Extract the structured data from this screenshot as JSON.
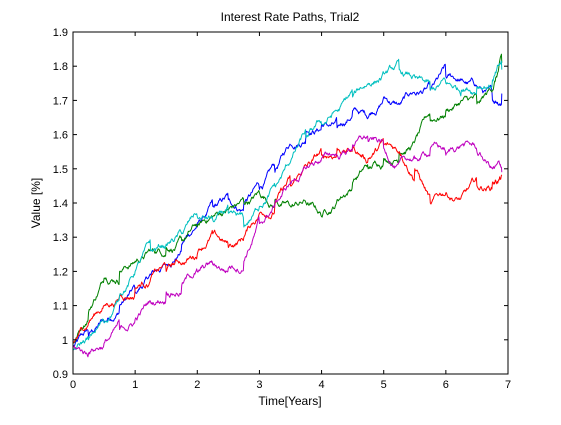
{
  "figure": {
    "background": "#ffffff"
  },
  "chart_data": {
    "type": "line",
    "title": "Interest Rate Paths, Trial2",
    "xlabel": "Time[Years]",
    "ylabel": "Value [%]",
    "xlim": [
      0,
      7
    ],
    "ylim": [
      0.9,
      1.9
    ],
    "xticks": [
      0,
      1,
      2,
      3,
      4,
      5,
      6,
      7
    ],
    "yticks": [
      0.9,
      1,
      1.1,
      1.2,
      1.3,
      1.4,
      1.5,
      1.6,
      1.7,
      1.8,
      1.9
    ],
    "xtick_labels": [
      "0",
      "1",
      "2",
      "3",
      "4",
      "5",
      "6",
      "7"
    ],
    "ytick_labels": [
      "0.9",
      "1",
      "1.1",
      "1.2",
      "1.3",
      "1.4",
      "1.5",
      "1.6",
      "1.7",
      "1.8",
      "1.9"
    ],
    "grid": false,
    "legend": false,
    "series": [
      {
        "color": "#0000ff",
        "x": [
          0,
          0.25,
          0.5,
          0.75,
          1.0,
          1.25,
          1.5,
          1.75,
          2.0,
          2.25,
          2.5,
          2.75,
          3.0,
          3.25,
          3.5,
          3.75,
          4.0,
          4.25,
          4.5,
          4.75,
          5.0,
          5.25,
          5.5,
          5.75,
          6.0,
          6.25,
          6.5,
          6.75,
          6.9
        ],
        "y": [
          0.98,
          1.01,
          1.05,
          1.1,
          1.14,
          1.19,
          1.22,
          1.28,
          1.34,
          1.39,
          1.41,
          1.4,
          1.44,
          1.49,
          1.57,
          1.61,
          1.63,
          1.62,
          1.67,
          1.65,
          1.71,
          1.69,
          1.72,
          1.73,
          1.77,
          1.76,
          1.74,
          1.7,
          1.72
        ]
      },
      {
        "color": "#008000",
        "x": [
          0,
          0.25,
          0.5,
          0.75,
          1.0,
          1.25,
          1.5,
          1.75,
          2.0,
          2.25,
          2.5,
          2.75,
          3.0,
          3.25,
          3.5,
          3.75,
          4.0,
          4.25,
          4.5,
          4.75,
          5.0,
          5.25,
          5.5,
          5.75,
          6.0,
          6.25,
          6.5,
          6.75,
          6.9
        ],
        "y": [
          0.99,
          1.08,
          1.18,
          1.2,
          1.23,
          1.26,
          1.27,
          1.29,
          1.33,
          1.36,
          1.38,
          1.4,
          1.43,
          1.41,
          1.39,
          1.4,
          1.36,
          1.41,
          1.46,
          1.5,
          1.53,
          1.55,
          1.58,
          1.64,
          1.67,
          1.7,
          1.69,
          1.73,
          1.81
        ]
      },
      {
        "color": "#ff0000",
        "x": [
          0,
          0.25,
          0.5,
          0.75,
          1.0,
          1.25,
          1.5,
          1.75,
          2.0,
          2.25,
          2.5,
          2.75,
          3.0,
          3.25,
          3.5,
          3.75,
          4.0,
          4.25,
          4.5,
          4.75,
          5.0,
          5.25,
          5.5,
          5.75,
          6.0,
          6.25,
          6.5,
          6.75,
          6.9
        ],
        "y": [
          0.99,
          1.05,
          1.1,
          1.13,
          1.15,
          1.18,
          1.2,
          1.22,
          1.25,
          1.31,
          1.27,
          1.3,
          1.37,
          1.4,
          1.45,
          1.51,
          1.54,
          1.56,
          1.56,
          1.53,
          1.57,
          1.55,
          1.5,
          1.4,
          1.43,
          1.42,
          1.45,
          1.46,
          1.48
        ]
      },
      {
        "color": "#00bfbf",
        "x": [
          0,
          0.25,
          0.5,
          0.75,
          1.0,
          1.25,
          1.5,
          1.75,
          2.0,
          2.25,
          2.5,
          2.75,
          3.0,
          3.25,
          3.5,
          3.75,
          4.0,
          4.25,
          4.5,
          4.75,
          5.0,
          5.25,
          5.5,
          5.75,
          6.0,
          6.25,
          6.5,
          6.75,
          6.9
        ],
        "y": [
          0.97,
          1.0,
          1.05,
          1.13,
          1.2,
          1.26,
          1.28,
          1.31,
          1.36,
          1.35,
          1.37,
          1.33,
          1.39,
          1.45,
          1.52,
          1.59,
          1.63,
          1.67,
          1.71,
          1.75,
          1.78,
          1.79,
          1.77,
          1.73,
          1.75,
          1.73,
          1.74,
          1.76,
          1.79
        ]
      },
      {
        "color": "#bf00bf",
        "x": [
          0,
          0.25,
          0.5,
          0.75,
          1.0,
          1.25,
          1.5,
          1.75,
          2.0,
          2.25,
          2.5,
          2.75,
          3.0,
          3.25,
          3.5,
          3.75,
          4.0,
          4.25,
          4.5,
          4.75,
          5.0,
          5.25,
          5.5,
          5.75,
          6.0,
          6.25,
          6.5,
          6.75,
          6.9
        ],
        "y": [
          0.98,
          0.96,
          0.99,
          1.03,
          1.06,
          1.11,
          1.14,
          1.16,
          1.2,
          1.22,
          1.21,
          1.23,
          1.34,
          1.4,
          1.46,
          1.5,
          1.53,
          1.54,
          1.57,
          1.58,
          1.56,
          1.52,
          1.53,
          1.56,
          1.54,
          1.57,
          1.55,
          1.5,
          1.49
        ]
      }
    ]
  }
}
